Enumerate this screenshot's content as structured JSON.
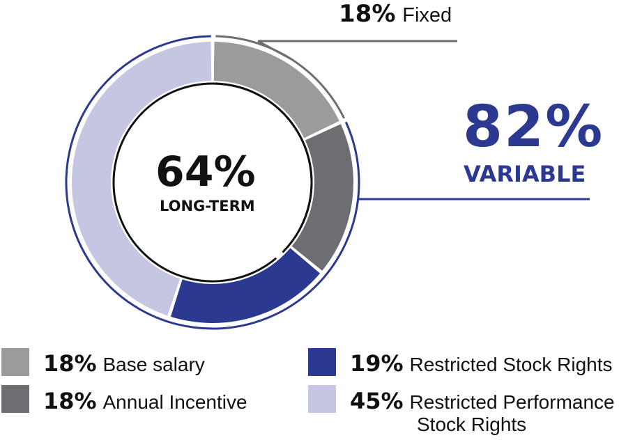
{
  "chart_data": {
    "type": "pie",
    "center_value": "64%",
    "center_label": "LONG-TERM",
    "slices": [
      {
        "label": "Base salary",
        "value": 18,
        "value_text": "18%",
        "color": "#9a9b9d"
      },
      {
        "label": "Annual Incentive",
        "value": 18,
        "value_text": "18%",
        "color": "#6d6e71"
      },
      {
        "label": "Restricted Stock Rights",
        "value": 19,
        "value_text": "19%",
        "color": "#2b3990"
      },
      {
        "label": "Restricted Performance Stock Rights",
        "value": 45,
        "value_text": "45%",
        "color": "#c5c6e2"
      }
    ],
    "callouts": {
      "fixed": {
        "value_text": "18%",
        "label": "Fixed",
        "value": 18,
        "color": "#6d6e71"
      },
      "variable": {
        "value_text": "82%",
        "label": "VARIABLE",
        "value": 82,
        "color": "#2b3990"
      }
    },
    "long_term_value": 64
  },
  "legend": {
    "items": [
      {
        "pct": "18%",
        "label": "Base salary",
        "label2": ""
      },
      {
        "pct": "18%",
        "label": "Annual Incentive",
        "label2": ""
      },
      {
        "pct": "19%",
        "label": "Restricted Stock Rights",
        "label2": ""
      },
      {
        "pct": "45%",
        "label": "Restricted Performance",
        "label2": "Stock Rights"
      }
    ]
  }
}
